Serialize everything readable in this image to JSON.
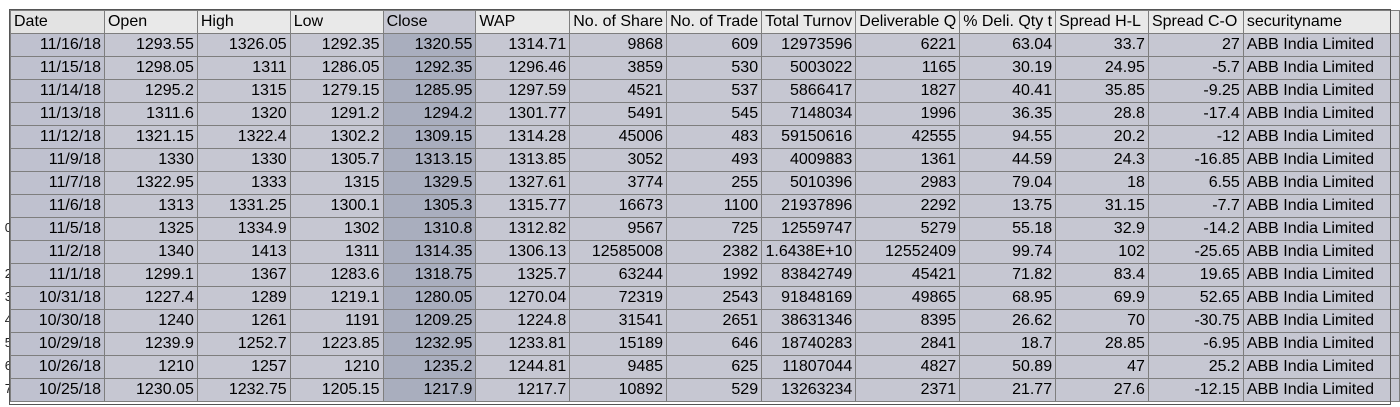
{
  "headers": [
    "Date",
    "Open",
    "High",
    "Low",
    "Close",
    "WAP",
    "No. of Share",
    "No. of Trade",
    "Total Turnov",
    "Deliverable Q",
    "% Deli. Qty t",
    "Spread H-L",
    "Spread C-O",
    "securityname"
  ],
  "row_numbers": [
    "",
    "",
    "",
    "",
    "",
    "",
    "",
    "",
    "0",
    "",
    "2",
    "3",
    "4",
    "5",
    "6",
    "7"
  ],
  "rows": [
    [
      "11/16/18",
      "1293.55",
      "1326.05",
      "1292.35",
      "1320.55",
      "1314.71",
      "9868",
      "609",
      "12973596",
      "6221",
      "63.04",
      "33.7",
      "27",
      "ABB India Limited"
    ],
    [
      "11/15/18",
      "1298.05",
      "1311",
      "1286.05",
      "1292.35",
      "1296.46",
      "3859",
      "530",
      "5003022",
      "1165",
      "30.19",
      "24.95",
      "-5.7",
      "ABB India Limited"
    ],
    [
      "11/14/18",
      "1295.2",
      "1315",
      "1279.15",
      "1285.95",
      "1297.59",
      "4521",
      "537",
      "5866417",
      "1827",
      "40.41",
      "35.85",
      "-9.25",
      "ABB India Limited"
    ],
    [
      "11/13/18",
      "1311.6",
      "1320",
      "1291.2",
      "1294.2",
      "1301.77",
      "5491",
      "545",
      "7148034",
      "1996",
      "36.35",
      "28.8",
      "-17.4",
      "ABB India Limited"
    ],
    [
      "11/12/18",
      "1321.15",
      "1322.4",
      "1302.2",
      "1309.15",
      "1314.28",
      "45006",
      "483",
      "59150616",
      "42555",
      "94.55",
      "20.2",
      "-12",
      "ABB India Limited"
    ],
    [
      "11/9/18",
      "1330",
      "1330",
      "1305.7",
      "1313.15",
      "1313.85",
      "3052",
      "493",
      "4009883",
      "1361",
      "44.59",
      "24.3",
      "-16.85",
      "ABB India Limited"
    ],
    [
      "11/7/18",
      "1322.95",
      "1333",
      "1315",
      "1329.5",
      "1327.61",
      "3774",
      "255",
      "5010396",
      "2983",
      "79.04",
      "18",
      "6.55",
      "ABB India Limited"
    ],
    [
      "11/6/18",
      "1313",
      "1331.25",
      "1300.1",
      "1305.3",
      "1315.77",
      "16673",
      "1100",
      "21937896",
      "2292",
      "13.75",
      "31.15",
      "-7.7",
      "ABB India Limited"
    ],
    [
      "11/5/18",
      "1325",
      "1334.9",
      "1302",
      "1310.8",
      "1312.82",
      "9567",
      "725",
      "12559747",
      "5279",
      "55.18",
      "32.9",
      "-14.2",
      "ABB India Limited"
    ],
    [
      "11/2/18",
      "1340",
      "1413",
      "1311",
      "1314.35",
      "1306.13",
      "12585008",
      "2382",
      "1.6438E+10",
      "12552409",
      "99.74",
      "102",
      "-25.65",
      "ABB India Limited"
    ],
    [
      "11/1/18",
      "1299.1",
      "1367",
      "1283.6",
      "1318.75",
      "1325.7",
      "63244",
      "1992",
      "83842749",
      "45421",
      "71.82",
      "83.4",
      "19.65",
      "ABB India Limited"
    ],
    [
      "10/31/18",
      "1227.4",
      "1289",
      "1219.1",
      "1280.05",
      "1270.04",
      "72319",
      "2543",
      "91848169",
      "49865",
      "68.95",
      "69.9",
      "52.65",
      "ABB India Limited"
    ],
    [
      "10/30/18",
      "1240",
      "1261",
      "1191",
      "1209.25",
      "1224.8",
      "31541",
      "2651",
      "38631346",
      "8395",
      "26.62",
      "70",
      "-30.75",
      "ABB India Limited"
    ],
    [
      "10/29/18",
      "1239.9",
      "1252.7",
      "1223.85",
      "1232.95",
      "1233.81",
      "15189",
      "646",
      "18740283",
      "2841",
      "18.7",
      "28.85",
      "-6.95",
      "ABB India Limited"
    ],
    [
      "10/26/18",
      "1210",
      "1257",
      "1210",
      "1235.2",
      "1244.81",
      "9485",
      "625",
      "11807044",
      "4827",
      "50.89",
      "47",
      "25.2",
      "ABB India Limited"
    ],
    [
      "10/25/18",
      "1230.05",
      "1232.75",
      "1205.15",
      "1217.9",
      "1217.7",
      "10892",
      "529",
      "13263234",
      "2371",
      "21.77",
      "27.6",
      "-12.15",
      "ABB India Limited"
    ]
  ],
  "colors": {
    "cell_fill": "#c6c7d2",
    "close_col_fill": "#a9aebe",
    "header_fill": "#e9e9e9",
    "gridline": "#7e7e7e"
  }
}
